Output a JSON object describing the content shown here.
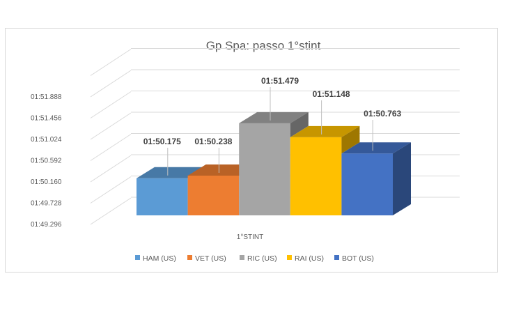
{
  "chart_data": {
    "type": "bar",
    "title": "Gp Spa: passo 1°stint",
    "categories": [
      "1°STINT"
    ],
    "series": [
      {
        "name": "HAM (US)",
        "value_label": "01:50.175",
        "seconds": 110.175,
        "color": "#5b9bd5"
      },
      {
        "name": "VET (US)",
        "value_label": "01:50.238",
        "seconds": 110.238,
        "color": "#ed7d31"
      },
      {
        "name": "RIC (US)",
        "value_label": "01:51.479",
        "seconds": 111.479,
        "color": "#a5a5a5"
      },
      {
        "name": "RAI (US)",
        "value_label": "01:51.148",
        "seconds": 111.148,
        "color": "#ffc000"
      },
      {
        "name": "BOT (US)",
        "value_label": "01:50.763",
        "seconds": 110.763,
        "color": "#4472c4"
      }
    ],
    "yticks": [
      "01:49.296",
      "01:49.728",
      "01:50.160",
      "01:50.592",
      "01:51.024",
      "01:51.456",
      "01:51.888"
    ],
    "ylim_seconds": [
      109.296,
      112.32
    ],
    "legend_position": "bottom",
    "grid": true,
    "style": "3d-clustered-column"
  }
}
